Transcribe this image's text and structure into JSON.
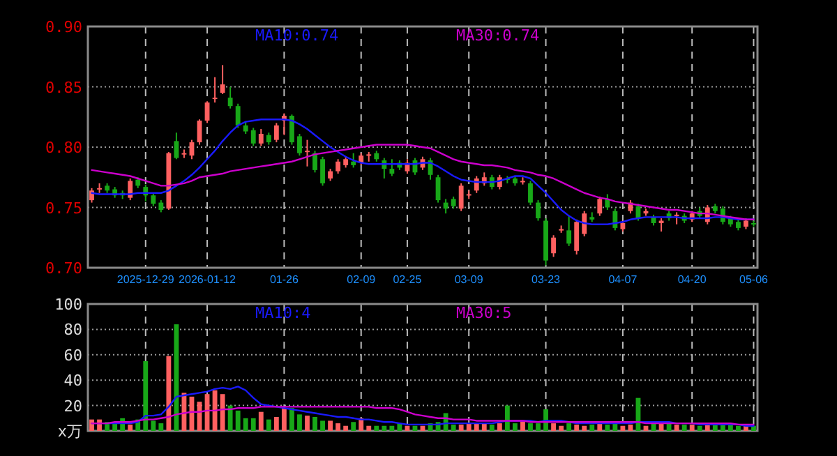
{
  "chart_data": [
    {
      "type": "candlestick",
      "categories": [
        null,
        null,
        null,
        null,
        null,
        null,
        null,
        "2025-12-29",
        null,
        null,
        null,
        null,
        null,
        null,
        null,
        "2026-01-12",
        null,
        null,
        null,
        null,
        null,
        null,
        null,
        null,
        null,
        "01-26",
        null,
        null,
        null,
        null,
        null,
        null,
        null,
        null,
        null,
        "02-09",
        null,
        null,
        null,
        null,
        null,
        "02-25",
        null,
        null,
        null,
        null,
        null,
        null,
        null,
        "03-09",
        null,
        null,
        null,
        null,
        null,
        null,
        null,
        null,
        null,
        "03-23",
        null,
        null,
        null,
        null,
        null,
        null,
        null,
        null,
        null,
        "04-07",
        null,
        null,
        null,
        null,
        null,
        null,
        null,
        null,
        "04-20",
        null,
        null,
        null,
        null,
        null,
        null,
        null,
        "05-06"
      ],
      "ohlc": [
        [
          0.756,
          0.766,
          0.754,
          0.764
        ],
        [
          0.765,
          0.77,
          0.762,
          0.766
        ],
        [
          0.768,
          0.77,
          0.762,
          0.764
        ],
        [
          0.765,
          0.767,
          0.758,
          0.76
        ],
        [
          0.762,
          0.764,
          0.757,
          0.76
        ],
        [
          0.758,
          0.774,
          0.756,
          0.772
        ],
        [
          0.773,
          0.775,
          0.766,
          0.768
        ],
        [
          0.767,
          0.769,
          0.755,
          0.76
        ],
        [
          0.76,
          0.762,
          0.751,
          0.753
        ],
        [
          0.754,
          0.756,
          0.746,
          0.748
        ],
        [
          0.749,
          0.796,
          0.748,
          0.795
        ],
        [
          0.805,
          0.812,
          0.79,
          0.791
        ],
        [
          0.794,
          0.798,
          0.791,
          0.795
        ],
        [
          0.793,
          0.806,
          0.79,
          0.804
        ],
        [
          0.804,
          0.823,
          0.802,
          0.822
        ],
        [
          0.822,
          0.838,
          0.82,
          0.837
        ],
        [
          0.84,
          0.858,
          0.837,
          0.841
        ],
        [
          0.845,
          0.868,
          0.844,
          0.852
        ],
        [
          0.841,
          0.85,
          0.832,
          0.834
        ],
        [
          0.834,
          0.836,
          0.816,
          0.818
        ],
        [
          0.818,
          0.821,
          0.811,
          0.813
        ],
        [
          0.814,
          0.816,
          0.801,
          0.803
        ],
        [
          0.803,
          0.815,
          0.801,
          0.811
        ],
        [
          0.81,
          0.812,
          0.802,
          0.804
        ],
        [
          0.806,
          0.82,
          0.804,
          0.818
        ],
        [
          0.822,
          0.828,
          0.81,
          0.826
        ],
        [
          0.826,
          0.827,
          0.802,
          0.804
        ],
        [
          0.809,
          0.811,
          0.793,
          0.795
        ],
        [
          0.796,
          0.806,
          0.784,
          0.797
        ],
        [
          0.795,
          0.797,
          0.779,
          0.781
        ],
        [
          0.79,
          0.792,
          0.768,
          0.77
        ],
        [
          0.774,
          0.782,
          0.772,
          0.78
        ],
        [
          0.78,
          0.79,
          0.778,
          0.788
        ],
        [
          0.785,
          0.792,
          0.783,
          0.79
        ],
        [
          0.788,
          0.795,
          0.783,
          0.785
        ],
        [
          0.787,
          0.795,
          0.785,
          0.793
        ],
        [
          0.793,
          0.796,
          0.788,
          0.794
        ],
        [
          0.795,
          0.797,
          0.788,
          0.79
        ],
        [
          0.789,
          0.791,
          0.774,
          0.782
        ],
        [
          0.782,
          0.79,
          0.776,
          0.778
        ],
        [
          0.787,
          0.789,
          0.781,
          0.783
        ],
        [
          0.78,
          0.79,
          0.778,
          0.787
        ],
        [
          0.789,
          0.791,
          0.777,
          0.779
        ],
        [
          0.783,
          0.792,
          0.781,
          0.79
        ],
        [
          0.789,
          0.791,
          0.773,
          0.777
        ],
        [
          0.775,
          0.777,
          0.754,
          0.756
        ],
        [
          0.754,
          0.757,
          0.745,
          0.749
        ],
        [
          0.757,
          0.759,
          0.749,
          0.751
        ],
        [
          0.749,
          0.77,
          0.747,
          0.768
        ],
        [
          0.76,
          0.764,
          0.757,
          0.761
        ],
        [
          0.764,
          0.776,
          0.762,
          0.774
        ],
        [
          0.77,
          0.779,
          0.768,
          0.775
        ],
        [
          0.775,
          0.777,
          0.765,
          0.767
        ],
        [
          0.767,
          0.777,
          0.765,
          0.775
        ],
        [
          0.774,
          0.776,
          0.77,
          0.773
        ],
        [
          0.774,
          0.776,
          0.768,
          0.77
        ],
        [
          0.771,
          0.775,
          0.769,
          0.772
        ],
        [
          0.77,
          0.772,
          0.752,
          0.754
        ],
        [
          0.754,
          0.756,
          0.739,
          0.741
        ],
        [
          0.739,
          0.741,
          0.702,
          0.706
        ],
        [
          0.712,
          0.727,
          0.709,
          0.725
        ],
        [
          0.731,
          0.735,
          0.729,
          0.732
        ],
        [
          0.731,
          0.743,
          0.718,
          0.72
        ],
        [
          0.714,
          0.74,
          0.711,
          0.738
        ],
        [
          0.728,
          0.747,
          0.726,
          0.745
        ],
        [
          0.742,
          0.746,
          0.738,
          0.74
        ],
        [
          0.745,
          0.759,
          0.743,
          0.757
        ],
        [
          0.757,
          0.761,
          0.748,
          0.75
        ],
        [
          0.747,
          0.749,
          0.731,
          0.733
        ],
        [
          0.732,
          0.739,
          0.73,
          0.737
        ],
        [
          0.747,
          0.756,
          0.745,
          0.754
        ],
        [
          0.751,
          0.753,
          0.739,
          0.741
        ],
        [
          0.745,
          0.749,
          0.743,
          0.747
        ],
        [
          0.742,
          0.744,
          0.735,
          0.737
        ],
        [
          0.737,
          0.741,
          0.73,
          0.739
        ],
        [
          0.745,
          0.747,
          0.739,
          0.741
        ],
        [
          0.743,
          0.746,
          0.736,
          0.744
        ],
        [
          0.743,
          0.745,
          0.737,
          0.739
        ],
        [
          0.74,
          0.747,
          0.738,
          0.745
        ],
        [
          0.747,
          0.75,
          0.741,
          0.743
        ],
        [
          0.738,
          0.752,
          0.736,
          0.75
        ],
        [
          0.751,
          0.753,
          0.745,
          0.747
        ],
        [
          0.749,
          0.751,
          0.736,
          0.738
        ],
        [
          0.741,
          0.743,
          0.734,
          0.736
        ],
        [
          0.738,
          0.74,
          0.731,
          0.733
        ],
        [
          0.734,
          0.741,
          0.732,
          0.739
        ],
        [
          0.737,
          0.739,
          0.734,
          0.736
        ]
      ],
      "colors": [
        "#ff6060",
        "#ff6060",
        "#18a818",
        "#18a818",
        "#18a818",
        "#ff6060",
        "#18a818",
        "#18a818",
        "#18a818",
        "#18a818",
        "#ff6060",
        "#18a818",
        "#ff6060",
        "#ff6060",
        "#ff6060",
        "#ff6060",
        "#ff6060",
        "#ff6060",
        "#18a818",
        "#18a818",
        "#18a818",
        "#18a818",
        "#ff6060",
        "#18a818",
        "#ff6060",
        "#ff6060",
        "#18a818",
        "#18a818",
        "#ff6060",
        "#18a818",
        "#18a818",
        "#ff6060",
        "#ff6060",
        "#ff6060",
        "#18a818",
        "#ff6060",
        "#ff6060",
        "#18a818",
        "#18a818",
        "#18a818",
        "#18a818",
        "#ff6060",
        "#18a818",
        "#ff6060",
        "#18a818",
        "#18a818",
        "#18a818",
        "#18a818",
        "#ff6060",
        "#ff6060",
        "#ff6060",
        "#ff6060",
        "#18a818",
        "#ff6060",
        "#18a818",
        "#18a818",
        "#ff6060",
        "#18a818",
        "#18a818",
        "#18a818",
        "#ff6060",
        "#ff6060",
        "#18a818",
        "#ff6060",
        "#ff6060",
        "#18a818",
        "#ff6060",
        "#18a818",
        "#18a818",
        "#ff6060",
        "#ff6060",
        "#18a818",
        "#ff6060",
        "#18a818",
        "#ff6060",
        "#18a818",
        "#ff6060",
        "#18a818",
        "#ff6060",
        "#18a818",
        "#ff6060",
        "#18a818",
        "#18a818",
        "#18a818",
        "#18a818",
        "#ff6060",
        "#18a818"
      ],
      "series": [
        {
          "type": "line",
          "name": "MA10:0.74",
          "color": "#1a1aff",
          "values": [
            0.762,
            0.761,
            0.761,
            0.761,
            0.761,
            0.761,
            0.762,
            0.762,
            0.762,
            0.762,
            0.764,
            0.768,
            0.772,
            0.777,
            0.783,
            0.79,
            0.797,
            0.805,
            0.812,
            0.818,
            0.821,
            0.822,
            0.823,
            0.823,
            0.823,
            0.823,
            0.822,
            0.819,
            0.815,
            0.81,
            0.805,
            0.8,
            0.796,
            0.792,
            0.789,
            0.787,
            0.786,
            0.786,
            0.786,
            0.786,
            0.786,
            0.786,
            0.786,
            0.787,
            0.787,
            0.784,
            0.78,
            0.776,
            0.773,
            0.772,
            0.771,
            0.771,
            0.771,
            0.772,
            0.774,
            0.776,
            0.776,
            0.774,
            0.768,
            0.762,
            0.755,
            0.748,
            0.743,
            0.739,
            0.737,
            0.736,
            0.736,
            0.736,
            0.737,
            0.738,
            0.74,
            0.741,
            0.742,
            0.742,
            0.742,
            0.742,
            0.742,
            0.741,
            0.741,
            0.741,
            0.741,
            0.742,
            0.742,
            0.741,
            0.74,
            0.74,
            0.74
          ]
        },
        {
          "type": "line",
          "name": "MA30:0.74",
          "color": "#cc00cc",
          "values": [
            0.781,
            0.78,
            0.779,
            0.778,
            0.777,
            0.776,
            0.774,
            0.772,
            0.77,
            0.768,
            0.768,
            0.769,
            0.77,
            0.772,
            0.775,
            0.776,
            0.777,
            0.778,
            0.78,
            0.781,
            0.782,
            0.783,
            0.784,
            0.785,
            0.786,
            0.787,
            0.788,
            0.79,
            0.792,
            0.794,
            0.795,
            0.796,
            0.797,
            0.798,
            0.799,
            0.8,
            0.801,
            0.802,
            0.802,
            0.802,
            0.802,
            0.802,
            0.801,
            0.8,
            0.799,
            0.796,
            0.793,
            0.79,
            0.788,
            0.787,
            0.786,
            0.785,
            0.785,
            0.784,
            0.783,
            0.781,
            0.78,
            0.779,
            0.777,
            0.776,
            0.774,
            0.771,
            0.768,
            0.765,
            0.762,
            0.76,
            0.758,
            0.757,
            0.755,
            0.754,
            0.753,
            0.752,
            0.751,
            0.75,
            0.749,
            0.748,
            0.748,
            0.747,
            0.746,
            0.745,
            0.745,
            0.744,
            0.743,
            0.742,
            0.741,
            0.74,
            0.74
          ]
        }
      ],
      "ylim": [
        0.7,
        0.9
      ],
      "yticks": [
        {
          "value": 0.7,
          "label": "0.70"
        },
        {
          "value": 0.75,
          "label": "0.75"
        },
        {
          "value": 0.8,
          "label": "0.80"
        },
        {
          "value": 0.85,
          "label": "0.85"
        },
        {
          "value": 0.9,
          "label": "0.90"
        }
      ],
      "grid": true,
      "legend": "top"
    },
    {
      "type": "bar",
      "categories": [
        null,
        null,
        null,
        null,
        null,
        null,
        null,
        null,
        null,
        null,
        null,
        null,
        null,
        null,
        null,
        null,
        null,
        null,
        null,
        null,
        null,
        null,
        null,
        null,
        null,
        null,
        null,
        null,
        null,
        null,
        null,
        null,
        null,
        null,
        null,
        null,
        null,
        null,
        null,
        null,
        null,
        null,
        null,
        null,
        null,
        null,
        null,
        null,
        null,
        null,
        null,
        null,
        null,
        null,
        null,
        null,
        null,
        null,
        null,
        null,
        null,
        null,
        null,
        null,
        null,
        null,
        null,
        null,
        null,
        null,
        null,
        null,
        null,
        null,
        null,
        null,
        null,
        null,
        null,
        null,
        null,
        null,
        null,
        null,
        null,
        null,
        null
      ],
      "values": [
        9,
        9,
        7,
        6,
        10,
        5,
        9,
        55,
        8,
        6,
        59,
        84,
        30,
        27,
        23,
        29,
        32,
        29,
        20,
        16,
        10,
        10,
        15,
        9,
        11,
        18,
        18,
        13,
        12,
        11,
        8,
        8,
        6,
        4,
        7,
        10,
        4,
        4,
        4,
        4,
        6,
        4,
        4,
        4,
        6,
        7,
        14,
        5,
        5,
        6,
        6,
        6,
        5,
        6,
        20,
        6,
        8,
        6,
        6,
        17,
        6,
        4,
        6,
        5,
        4,
        5,
        6,
        5,
        6,
        4,
        5,
        26,
        4,
        6,
        6,
        6,
        5,
        5,
        5,
        4,
        6,
        6,
        5,
        6,
        4,
        5,
        4
      ],
      "colors": [
        "#ff6060",
        "#ff6060",
        "#18a818",
        "#18a818",
        "#18a818",
        "#ff6060",
        "#18a818",
        "#18a818",
        "#18a818",
        "#18a818",
        "#ff6060",
        "#18a818",
        "#ff6060",
        "#ff6060",
        "#ff6060",
        "#ff6060",
        "#ff6060",
        "#ff6060",
        "#18a818",
        "#18a818",
        "#18a818",
        "#18a818",
        "#ff6060",
        "#18a818",
        "#ff6060",
        "#ff6060",
        "#18a818",
        "#18a818",
        "#ff6060",
        "#18a818",
        "#18a818",
        "#ff6060",
        "#ff6060",
        "#ff6060",
        "#18a818",
        "#ff6060",
        "#ff6060",
        "#18a818",
        "#18a818",
        "#18a818",
        "#18a818",
        "#ff6060",
        "#18a818",
        "#ff6060",
        "#18a818",
        "#18a818",
        "#18a818",
        "#18a818",
        "#ff6060",
        "#ff6060",
        "#ff6060",
        "#ff6060",
        "#18a818",
        "#ff6060",
        "#18a818",
        "#18a818",
        "#ff6060",
        "#18a818",
        "#18a818",
        "#18a818",
        "#ff6060",
        "#ff6060",
        "#18a818",
        "#ff6060",
        "#ff6060",
        "#18a818",
        "#ff6060",
        "#18a818",
        "#18a818",
        "#ff6060",
        "#ff6060",
        "#18a818",
        "#ff6060",
        "#18a818",
        "#ff6060",
        "#18a818",
        "#ff6060",
        "#18a818",
        "#ff6060",
        "#18a818",
        "#ff6060",
        "#18a818",
        "#18a818",
        "#18a818",
        "#18a818",
        "#ff6060",
        "#18a818"
      ],
      "series": [
        {
          "type": "line",
          "name": "MA10:4",
          "color": "#1a1aff",
          "values": [
            6,
            6,
            6,
            6,
            6,
            6,
            7,
            12,
            12,
            13,
            19,
            27,
            28,
            29,
            30,
            31,
            33,
            34,
            33,
            35,
            32,
            26,
            21,
            20,
            19,
            18,
            17,
            16,
            15,
            14,
            13,
            12,
            11,
            11,
            10,
            9,
            9,
            8,
            7,
            7,
            6,
            5,
            5,
            5,
            5,
            5,
            6,
            6,
            6,
            6,
            6,
            6,
            6,
            7,
            8,
            8,
            8,
            8,
            7,
            8,
            8,
            8,
            7,
            6,
            6,
            6,
            6,
            6,
            6,
            6,
            6,
            7,
            7,
            7,
            7,
            7,
            6,
            6,
            6,
            5,
            5,
            5,
            5,
            5,
            5,
            4,
            4
          ]
        },
        {
          "type": "line",
          "name": "MA30:5",
          "color": "#cc00cc",
          "values": [
            6,
            6,
            6,
            7,
            7,
            7,
            8,
            9,
            9,
            10,
            11,
            13,
            14,
            15,
            15,
            16,
            16,
            17,
            17,
            18,
            18,
            18,
            19,
            19,
            19,
            19,
            19,
            19,
            19,
            19,
            19,
            19,
            19,
            19,
            19,
            19,
            19,
            18,
            18,
            18,
            17,
            15,
            13,
            12,
            11,
            10,
            10,
            9,
            9,
            9,
            8,
            8,
            8,
            8,
            8,
            8,
            8,
            7,
            7,
            7,
            7,
            7,
            7,
            7,
            7,
            7,
            7,
            7,
            7,
            7,
            7,
            7,
            6,
            6,
            6,
            6,
            6,
            6,
            6,
            6,
            6,
            6,
            6,
            6,
            5,
            5,
            5
          ]
        }
      ],
      "ylim": [
        0,
        100
      ],
      "yticks": [
        {
          "value": 0,
          "label": "x万"
        },
        20,
        40,
        60,
        80,
        100
      ],
      "grid": true,
      "legend": "top",
      "tick_labels": "y"
    }
  ]
}
